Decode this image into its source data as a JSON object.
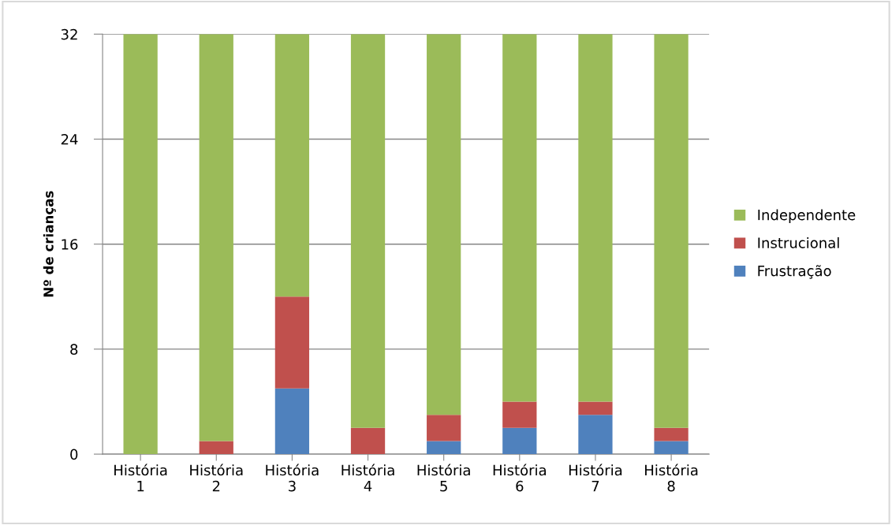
{
  "chart_data": {
    "type": "bar",
    "stacked": true,
    "ylabel": "Nº de crianças",
    "categories": [
      "História\n1",
      "História\n2",
      "História\n3",
      "História\n4",
      "História\n5",
      "História\n6",
      "História\n7",
      "História\n8"
    ],
    "series": [
      {
        "name": "Frustração",
        "color": "#4f81bd",
        "values": [
          0,
          0,
          5,
          0,
          1,
          2,
          3,
          1
        ]
      },
      {
        "name": "Instrucional",
        "color": "#c0504d",
        "values": [
          0,
          1,
          7,
          2,
          2,
          2,
          1,
          1
        ]
      },
      {
        "name": "Independente",
        "color": "#9bbb59",
        "values": [
          32,
          31,
          20,
          30,
          29,
          28,
          28,
          30
        ]
      }
    ],
    "ylim": [
      0,
      32
    ],
    "yticks": [
      0,
      8,
      16,
      24,
      32
    ],
    "grid": "y",
    "legend": "right"
  }
}
